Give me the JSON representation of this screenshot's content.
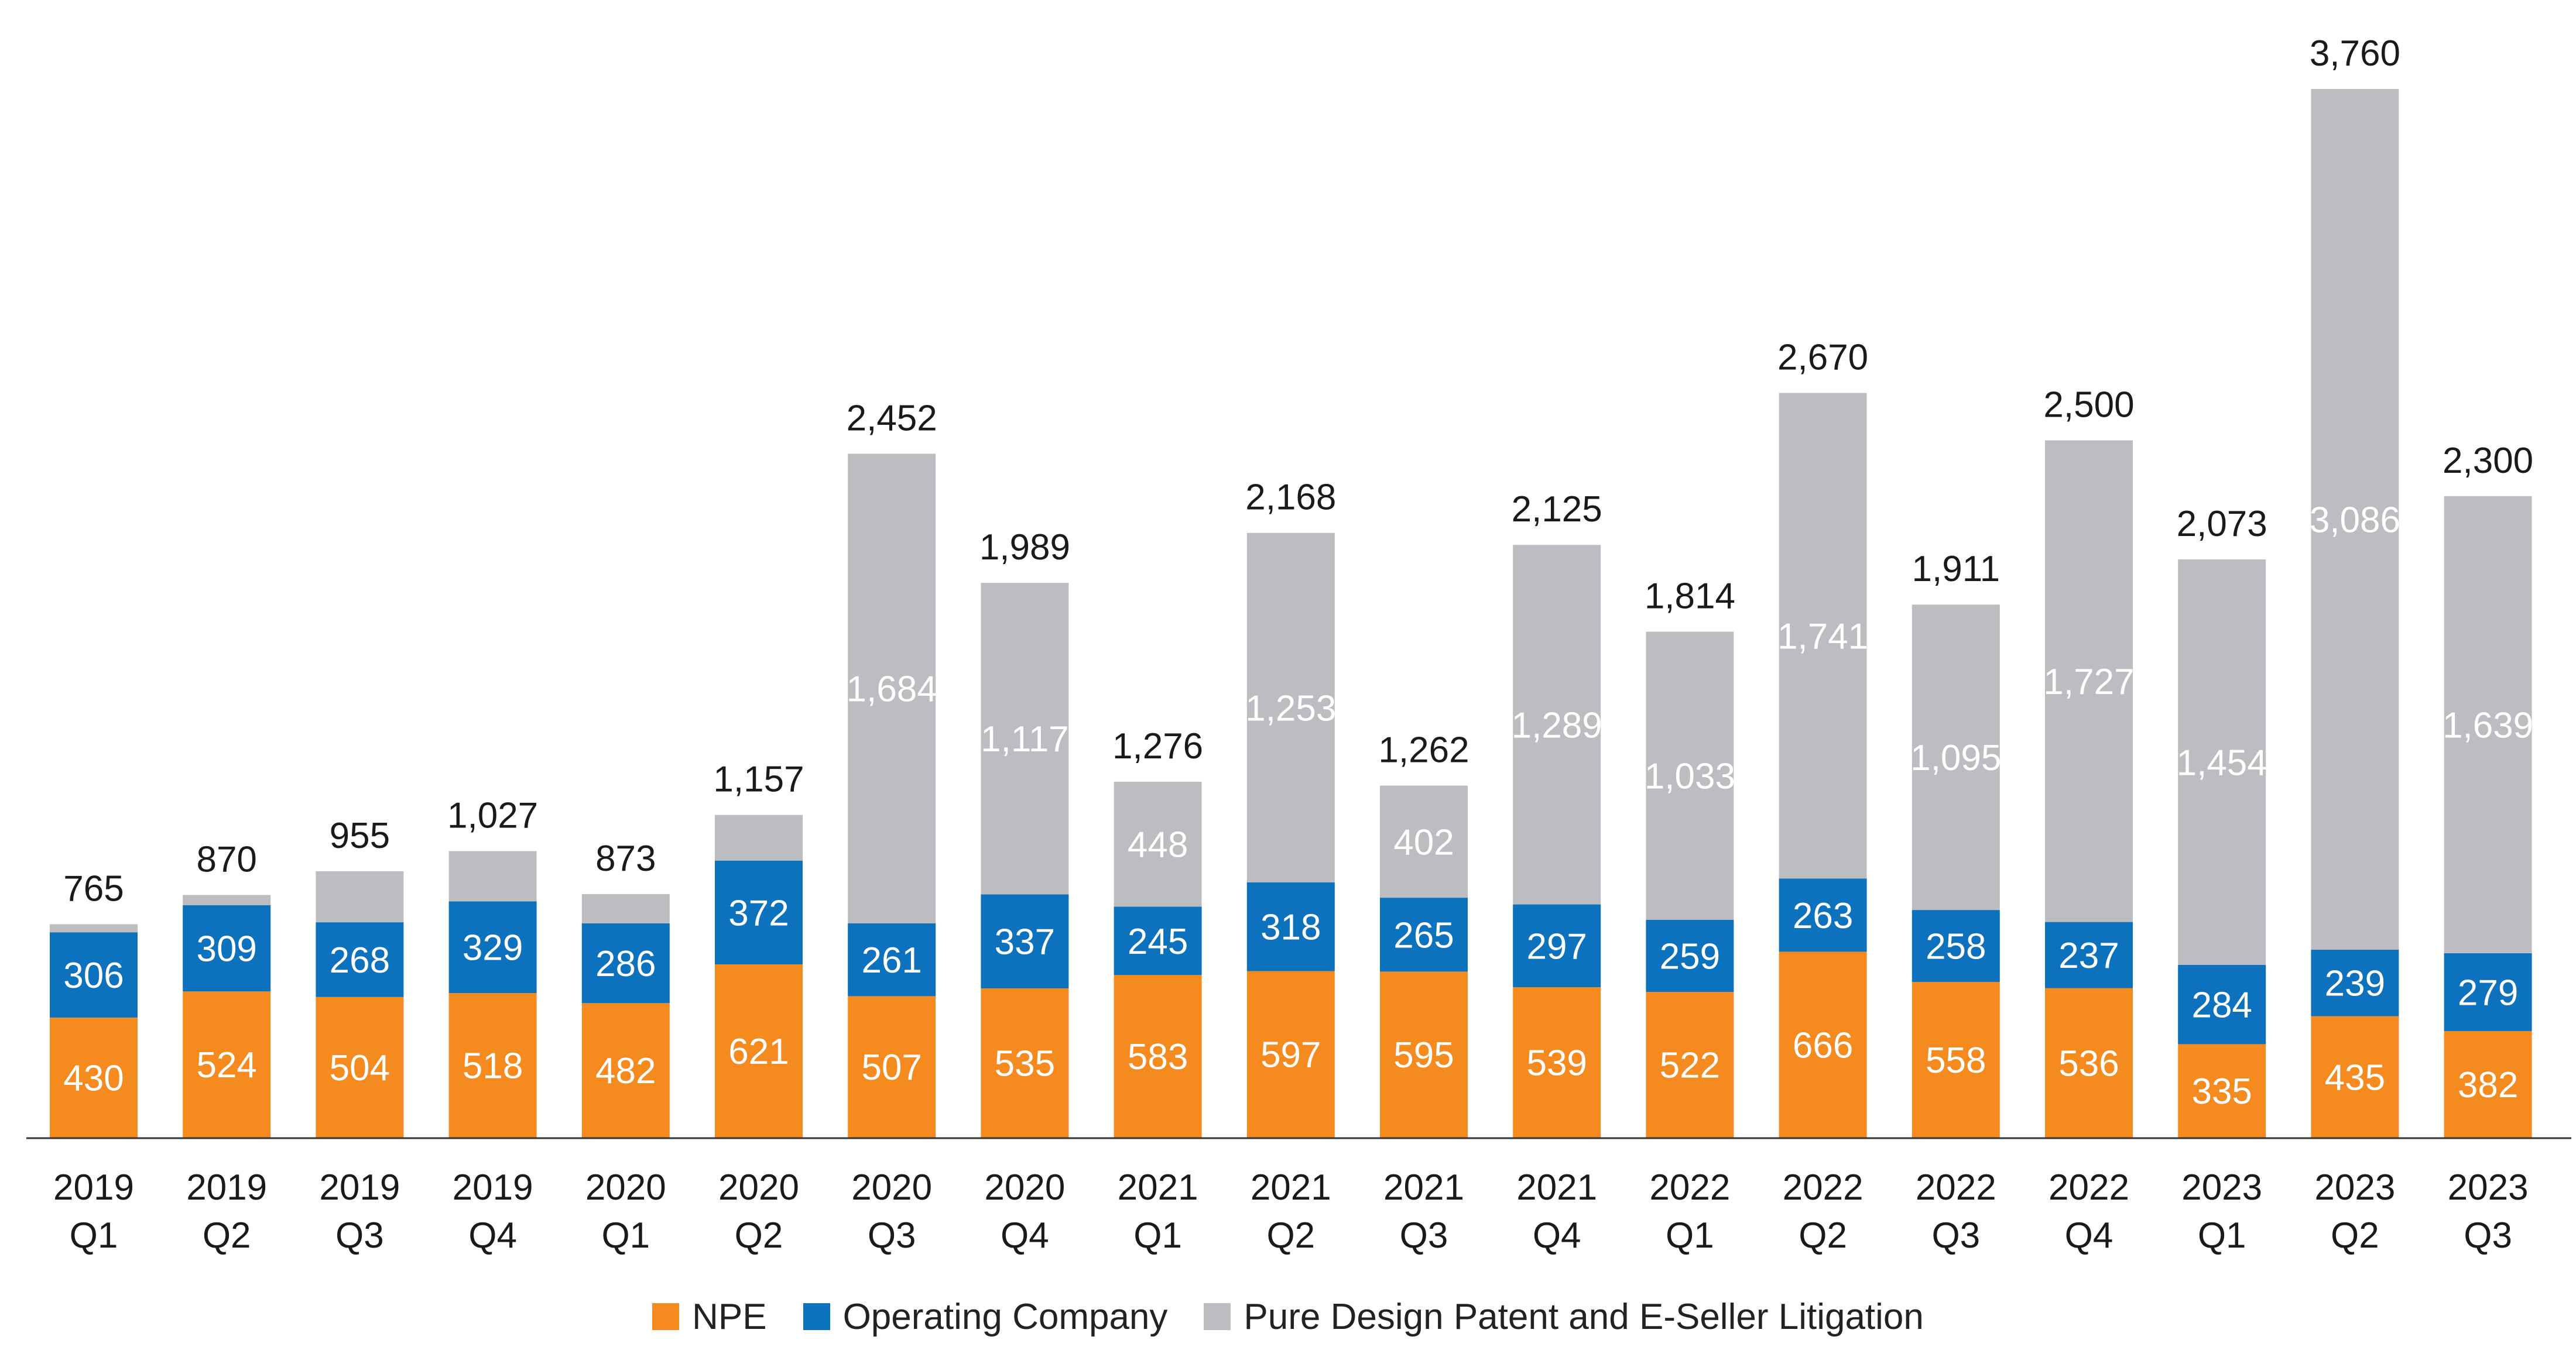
{
  "chart_data": {
    "type": "bar",
    "stacked": true,
    "title": "",
    "xlabel": "",
    "ylabel": "",
    "ylim": [
      0,
      3900
    ],
    "grid": false,
    "legend_position": "bottom-center",
    "categories": [
      [
        "2019",
        "Q1"
      ],
      [
        "2019",
        "Q2"
      ],
      [
        "2019",
        "Q3"
      ],
      [
        "2019",
        "Q4"
      ],
      [
        "2020",
        "Q1"
      ],
      [
        "2020",
        "Q2"
      ],
      [
        "2020",
        "Q3"
      ],
      [
        "2020",
        "Q4"
      ],
      [
        "2021",
        "Q1"
      ],
      [
        "2021",
        "Q2"
      ],
      [
        "2021",
        "Q3"
      ],
      [
        "2021",
        "Q4"
      ],
      [
        "2022",
        "Q1"
      ],
      [
        "2022",
        "Q2"
      ],
      [
        "2022",
        "Q3"
      ],
      [
        "2022",
        "Q4"
      ],
      [
        "2023",
        "Q1"
      ],
      [
        "2023",
        "Q2"
      ],
      [
        "2023",
        "Q3"
      ]
    ],
    "series": [
      {
        "name": "NPE",
        "color": "#f58a1f",
        "values": [
          430,
          524,
          504,
          518,
          482,
          621,
          507,
          535,
          583,
          597,
          595,
          539,
          522,
          666,
          558,
          536,
          335,
          435,
          382
        ],
        "labels": [
          "430",
          "524",
          "504",
          "518",
          "482",
          "621",
          "507",
          "535",
          "583",
          "597",
          "595",
          "539",
          "522",
          "666",
          "558",
          "536",
          "335",
          "435",
          "382"
        ]
      },
      {
        "name": "Operating Company",
        "color": "#0d72bd",
        "values": [
          306,
          309,
          268,
          329,
          286,
          372,
          261,
          337,
          245,
          318,
          265,
          297,
          259,
          263,
          258,
          237,
          284,
          239,
          279
        ],
        "labels": [
          "306",
          "309",
          "268",
          "329",
          "286",
          "372",
          "261",
          "337",
          "245",
          "318",
          "265",
          "297",
          "259",
          "263",
          "258",
          "237",
          "284",
          "239",
          "279"
        ]
      },
      {
        "name": "Pure Design Patent and E-Seller Litigation",
        "color": "#bbbdc0",
        "values": [
          29,
          37,
          183,
          180,
          105,
          164,
          1684,
          1117,
          448,
          1253,
          402,
          1289,
          1033,
          1741,
          1095,
          1727,
          1454,
          3086,
          1639
        ],
        "labels": [
          "",
          "",
          "",
          "",
          "",
          "",
          "1,684",
          "1,117",
          "448",
          "1,253",
          "402",
          "1,289",
          "1,033",
          "1,741",
          "1,095",
          "1,727",
          "1,454",
          "3,086",
          "1,639"
        ]
      }
    ],
    "totals": [
      765,
      870,
      955,
      1027,
      873,
      1157,
      2452,
      1989,
      1276,
      2168,
      1262,
      2125,
      1814,
      2670,
      1911,
      2500,
      2073,
      3760,
      2300
    ],
    "total_labels": [
      "765",
      "870",
      "955",
      "1,027",
      "873",
      "1,157",
      "2,452",
      "1,989",
      "1,276",
      "2,168",
      "1,262",
      "2,125",
      "1,814",
      "2,670",
      "1,911",
      "2,500",
      "2,073",
      "3,760",
      "2,300"
    ]
  }
}
